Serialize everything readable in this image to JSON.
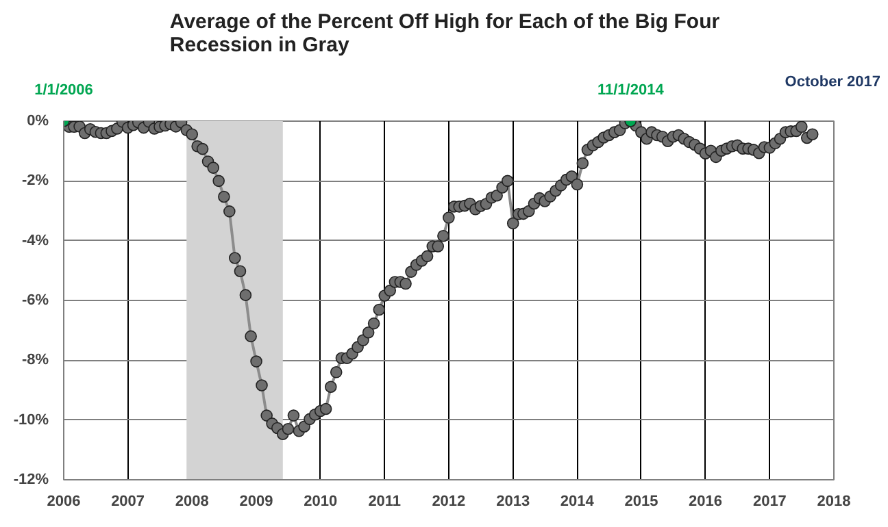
{
  "chart_data": {
    "type": "line",
    "title": "Average of the Percent Off High for Each of the Big Four\nRecession in Gray",
    "annotations": [
      "October 2017",
      {
        "text": "1/1/2006",
        "x": "2006-01",
        "y": 0
      },
      {
        "text": "11/1/2014",
        "x": "2014-11",
        "y": 0
      }
    ],
    "x": [
      "2006-01",
      "2006-02",
      "2006-03",
      "2006-04",
      "2006-05",
      "2006-06",
      "2006-07",
      "2006-08",
      "2006-09",
      "2006-10",
      "2006-11",
      "2006-12",
      "2007-01",
      "2007-02",
      "2007-03",
      "2007-04",
      "2007-05",
      "2007-06",
      "2007-07",
      "2007-08",
      "2007-09",
      "2007-10",
      "2007-11",
      "2007-12",
      "2008-01",
      "2008-02",
      "2008-03",
      "2008-04",
      "2008-05",
      "2008-06",
      "2008-07",
      "2008-08",
      "2008-09",
      "2008-10",
      "2008-11",
      "2008-12",
      "2009-01",
      "2009-02",
      "2009-03",
      "2009-04",
      "2009-05",
      "2009-06",
      "2009-07",
      "2009-08",
      "2009-09",
      "2009-10",
      "2009-11",
      "2009-12",
      "2010-01",
      "2010-02",
      "2010-03",
      "2010-04",
      "2010-05",
      "2010-06",
      "2010-07",
      "2010-08",
      "2010-09",
      "2010-10",
      "2010-11",
      "2010-12",
      "2011-01",
      "2011-02",
      "2011-03",
      "2011-04",
      "2011-05",
      "2011-06",
      "2011-07",
      "2011-08",
      "2011-09",
      "2011-10",
      "2011-11",
      "2011-12",
      "2012-01",
      "2012-02",
      "2012-03",
      "2012-04",
      "2012-05",
      "2012-06",
      "2012-07",
      "2012-08",
      "2012-09",
      "2012-10",
      "2012-11",
      "2012-12",
      "2013-01",
      "2013-02",
      "2013-03",
      "2013-04",
      "2013-05",
      "2013-06",
      "2013-07",
      "2013-08",
      "2013-09",
      "2013-10",
      "2013-11",
      "2013-12",
      "2014-01",
      "2014-02",
      "2014-03",
      "2014-04",
      "2014-05",
      "2014-06",
      "2014-07",
      "2014-08",
      "2014-09",
      "2014-10",
      "2014-11",
      "2014-12",
      "2015-01",
      "2015-02",
      "2015-03",
      "2015-04",
      "2015-05",
      "2015-06",
      "2015-07",
      "2015-08",
      "2015-09",
      "2015-10",
      "2015-11",
      "2015-12",
      "2016-01",
      "2016-02",
      "2016-03",
      "2016-04",
      "2016-05",
      "2016-06",
      "2016-07",
      "2016-08",
      "2016-09",
      "2016-10",
      "2016-11",
      "2016-12",
      "2017-01",
      "2017-02",
      "2017-03",
      "2017-04",
      "2017-05",
      "2017-06",
      "2017-07",
      "2017-08",
      "2017-09"
    ],
    "series": [
      {
        "color": "#6e6e6e",
        "values": [
          0,
          -0.19,
          -0.19,
          -0.18,
          -0.4,
          -0.27,
          -0.36,
          -0.4,
          -0.4,
          -0.33,
          -0.25,
          -0.02,
          -0.22,
          -0.13,
          -0.04,
          -0.22,
          -0.02,
          -0.25,
          -0.19,
          -0.15,
          -0.1,
          -0.18,
          -0.04,
          -0.3,
          -0.44,
          -0.84,
          -0.93,
          -1.35,
          -1.56,
          -2.0,
          -2.53,
          -3.02,
          -4.58,
          -5.02,
          -5.82,
          -7.2,
          -8.04,
          -8.84,
          -9.85,
          -10.12,
          -10.27,
          -10.47,
          -10.3,
          -9.85,
          -10.37,
          -10.22,
          -9.97,
          -9.82,
          -9.7,
          -9.63,
          -8.89,
          -8.4,
          -7.93,
          -7.93,
          -7.78,
          -7.56,
          -7.33,
          -7.07,
          -6.77,
          -6.31,
          -5.84,
          -5.67,
          -5.38,
          -5.38,
          -5.44,
          -5.04,
          -4.81,
          -4.67,
          -4.52,
          -4.19,
          -4.19,
          -3.84,
          -3.23,
          -2.86,
          -2.86,
          -2.83,
          -2.76,
          -2.95,
          -2.84,
          -2.77,
          -2.56,
          -2.49,
          -2.22,
          -2.0,
          -3.42,
          -3.11,
          -3.1,
          -3.01,
          -2.76,
          -2.58,
          -2.68,
          -2.52,
          -2.33,
          -2.15,
          -1.96,
          -1.85,
          -2.12,
          -1.41,
          -0.96,
          -0.81,
          -0.7,
          -0.55,
          -0.47,
          -0.37,
          -0.3,
          -0.07,
          0,
          -0.15,
          -0.37,
          -0.59,
          -0.37,
          -0.47,
          -0.52,
          -0.67,
          -0.52,
          -0.47,
          -0.59,
          -0.7,
          -0.79,
          -0.92,
          -1.08,
          -0.99,
          -1.2,
          -0.99,
          -0.92,
          -0.84,
          -0.81,
          -0.92,
          -0.92,
          -0.96,
          -1.07,
          -0.87,
          -0.89,
          -0.74,
          -0.59,
          -0.37,
          -0.34,
          -0.33,
          -0.19,
          -0.56,
          -0.44
        ]
      },
      {
        "type": "scatter",
        "color": "#00a651",
        "x": [
          "2006-01",
          "2014-11"
        ],
        "values": [
          0,
          0
        ]
      }
    ],
    "bands": [
      {
        "axis": "x",
        "from": "2007-12",
        "to": "2009-06",
        "color": "#d3d3d3"
      }
    ],
    "xlim": [
      "2006",
      "2018"
    ],
    "xticks": [
      "2006",
      "2007",
      "2008",
      "2009",
      "2010",
      "2011",
      "2012",
      "2013",
      "2014",
      "2015",
      "2016",
      "2017",
      "2018"
    ],
    "ylim": [
      -12,
      0
    ],
    "yticks": [
      {
        "value": 0,
        "label": "0%"
      },
      {
        "value": -2,
        "label": "-2%"
      },
      {
        "value": -4,
        "label": "-4%"
      },
      {
        "value": -6,
        "label": "-6%"
      },
      {
        "value": -8,
        "label": "-8%"
      },
      {
        "value": -10,
        "label": "-10%"
      },
      {
        "value": -12,
        "label": "-12%"
      }
    ],
    "grid": true,
    "marker": "circle",
    "line_style": "solid"
  }
}
